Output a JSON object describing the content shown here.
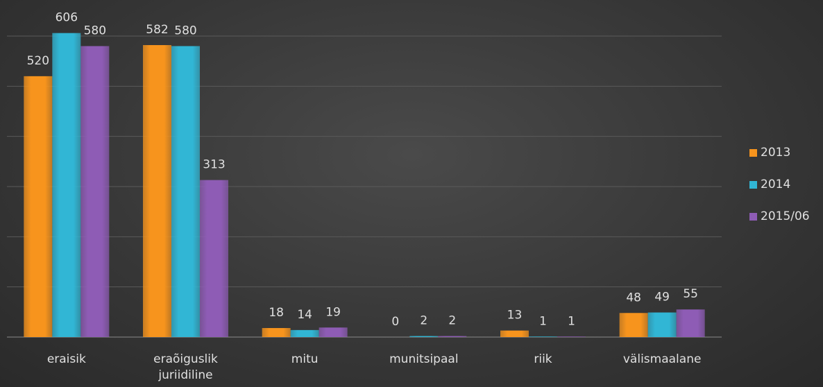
{
  "chart_data": {
    "type": "bar",
    "categories": [
      "eraisik",
      "eraõiguslik juriidiline",
      "mitu",
      "munitsipaal",
      "riik",
      "välismaalane"
    ],
    "series": [
      {
        "name": "2013",
        "color": "#f7941d",
        "values": [
          520,
          582,
          18,
          0,
          13,
          48
        ]
      },
      {
        "name": "2014",
        "color": "#31b6d5",
        "values": [
          606,
          580,
          14,
          2,
          1,
          49
        ]
      },
      {
        "name": "2015/06",
        "color": "#8e5cb5",
        "values": [
          580,
          313,
          19,
          2,
          1,
          55
        ]
      }
    ],
    "ylim": [
      0,
      600
    ],
    "yticks": [
      0,
      100,
      200,
      300,
      400,
      500,
      600
    ],
    "grid": true,
    "legend": "right"
  }
}
